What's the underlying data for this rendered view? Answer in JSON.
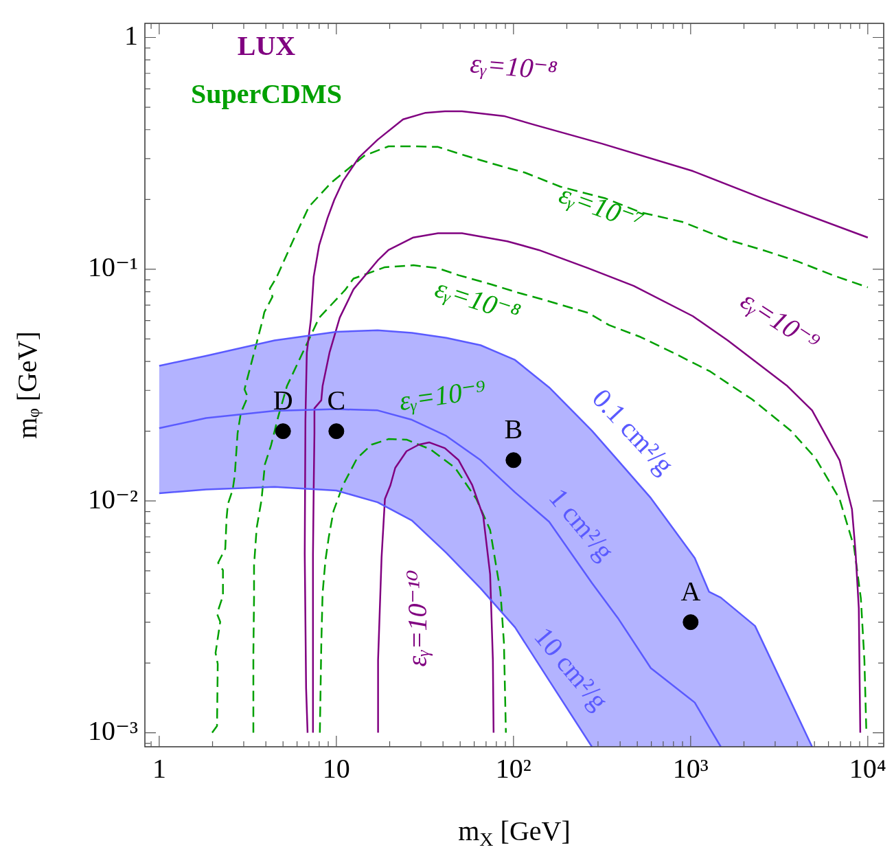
{
  "chart_data": {
    "type": "line",
    "log": "xy",
    "xlabel": "m$_{X}$ [GeV]",
    "ylabel": "mᵩ [GeV]",
    "xlim": [
      0.83,
      12300
    ],
    "ylim": [
      0.00087,
      1.15
    ],
    "xticks": [
      {
        "value": 0.9,
        "label": null
      },
      1,
      {
        "value": 2,
        "label": null
      },
      {
        "value": 3,
        "label": null
      },
      {
        "value": 4,
        "label": null
      },
      {
        "value": 5,
        "label": null
      },
      {
        "value": 6,
        "label": null
      },
      {
        "value": 7,
        "label": null
      },
      {
        "value": 8,
        "label": null
      },
      {
        "value": 9,
        "label": null
      },
      10,
      {
        "value": 20,
        "label": null
      },
      {
        "value": 30,
        "label": null
      },
      {
        "value": 40,
        "label": null
      },
      {
        "value": 50,
        "label": null
      },
      {
        "value": 60,
        "label": null
      },
      {
        "value": 70,
        "label": null
      },
      {
        "value": 80,
        "label": null
      },
      {
        "value": 90,
        "label": null
      },
      {
        "value": 100,
        "label": "10²"
      },
      {
        "value": 200,
        "label": null
      },
      {
        "value": 300,
        "label": null
      },
      {
        "value": 400,
        "label": null
      },
      {
        "value": 500,
        "label": null
      },
      {
        "value": 600,
        "label": null
      },
      {
        "value": 700,
        "label": null
      },
      {
        "value": 800,
        "label": null
      },
      {
        "value": 900,
        "label": null
      },
      {
        "value": 1000,
        "label": "10³"
      },
      {
        "value": 2000,
        "label": null
      },
      {
        "value": 3000,
        "label": null
      },
      {
        "value": 4000,
        "label": null
      },
      {
        "value": 5000,
        "label": null
      },
      {
        "value": 6000,
        "label": null
      },
      {
        "value": 7000,
        "label": null
      },
      {
        "value": 8000,
        "label": null
      },
      {
        "value": 9000,
        "label": null
      },
      {
        "value": 10000,
        "label": "10⁴"
      }
    ],
    "yticks": [
      {
        "value": 0.0009,
        "label": null
      },
      {
        "value": 0.001,
        "label": "10⁻³"
      },
      {
        "value": 0.002,
        "label": null
      },
      {
        "value": 0.003,
        "label": null
      },
      {
        "value": 0.004,
        "label": null
      },
      {
        "value": 0.005,
        "label": null
      },
      {
        "value": 0.006,
        "label": null
      },
      {
        "value": 0.007,
        "label": null
      },
      {
        "value": 0.008,
        "label": null
      },
      {
        "value": 0.009,
        "label": null
      },
      {
        "value": 0.01,
        "label": "10⁻²"
      },
      {
        "value": 0.02,
        "label": null
      },
      {
        "value": 0.03,
        "label": null
      },
      {
        "value": 0.04,
        "label": null
      },
      {
        "value": 0.05,
        "label": null
      },
      {
        "value": 0.06,
        "label": null
      },
      {
        "value": 0.07,
        "label": null
      },
      {
        "value": 0.08,
        "label": null
      },
      {
        "value": 0.09,
        "label": null
      },
      {
        "value": 0.1,
        "label": "10⁻¹"
      },
      {
        "value": 0.2,
        "label": null
      },
      {
        "value": 0.3,
        "label": null
      },
      {
        "value": 0.4,
        "label": null
      },
      {
        "value": 0.5,
        "label": null
      },
      {
        "value": 0.6,
        "label": null
      },
      {
        "value": 0.7,
        "label": null
      },
      {
        "value": 0.8,
        "label": null
      },
      {
        "value": 0.9,
        "label": null
      },
      1
    ],
    "series": [
      {
        "color": "#5a5aff",
        "line_style": "solid",
        "x": [
          1,
          1.84,
          4.48,
          10,
          17.1,
          26.7,
          41.7,
          65.2,
          102,
          159,
          277,
          388,
          596,
          1055,
          1270,
          1480,
          2310,
          4850
        ],
        "values": [
          0.0206,
          0.0228,
          0.0245,
          0.0249,
          0.0246,
          0.0224,
          0.0191,
          0.015,
          0.0109,
          0.00813,
          0.00443,
          0.00313,
          0.0019,
          0.00135,
          0.00106,
          0.00087,
          null,
          null
        ],
        "upper": [
          0.0383,
          0.0423,
          0.0493,
          0.0537,
          0.0545,
          0.0531,
          0.0506,
          0.047,
          0.0406,
          0.0309,
          0.0201,
          0.015,
          0.0103,
          0.00567,
          0.00406,
          0.00383,
          0.00289,
          0.00087
        ],
        "lower": [
          0.0108,
          0.0112,
          0.0115,
          0.0111,
          0.00987,
          0.00824,
          0.00598,
          0.0042,
          0.00285,
          0.00168,
          0.00087,
          0.00087,
          0.00087,
          0.00087,
          0.00087,
          0.00087,
          0.00087,
          0.00087
        ]
      },
      {
        "color": "#5a5aff",
        "line_style": "solid",
        "x": [
          1,
          1.84,
          4.48,
          10,
          17.1,
          26.7,
          41.7,
          65.2,
          102,
          159,
          277,
          388,
          596,
          1055,
          1270,
          1480,
          2310,
          4850
        ],
        "values": [
          0.0383,
          0.0423,
          0.0493,
          0.0537,
          0.0545,
          0.0531,
          0.0506,
          0.047,
          0.0406,
          0.0309,
          0.0201,
          0.015,
          0.0103,
          0.00567,
          0.00406,
          0.00383,
          0.00289,
          0.00087
        ]
      },
      {
        "color": "#5a5aff",
        "line_style": "solid",
        "x": [
          1,
          1.84,
          4.48,
          10,
          17.1,
          26.7,
          41.7,
          65.2,
          102,
          159,
          277
        ],
        "values": [
          0.0108,
          0.0112,
          0.0115,
          0.0111,
          0.00987,
          0.00824,
          0.00598,
          0.0042,
          0.00285,
          0.00168,
          0.00087
        ]
      },
      {
        "color": "#800080",
        "line_style": "solid",
        "x": [
          6.88,
          6.75,
          6.63,
          6.69,
          6.81,
          7.19,
          7.45,
          8.0,
          8.91,
          9.73,
          10.9,
          13.4,
          17.1,
          23.8,
          31.9,
          41.0,
          51.2,
          88.3,
          131,
          316,
          1030,
          2550,
          10000
        ],
        "values": [
          0.001,
          0.00155,
          0.0059,
          0.0224,
          0.0437,
          0.0611,
          0.0929,
          0.127,
          0.166,
          0.199,
          0.24,
          0.303,
          0.362,
          0.443,
          0.473,
          0.48,
          0.48,
          0.458,
          0.42,
          0.348,
          0.265,
          0.202,
          0.137
        ]
      },
      {
        "color": "#800080",
        "line_style": "solid",
        "x": [
          7.38,
          7.38,
          7.45,
          7.52,
          7.52,
          8.22,
          8.36,
          9.15,
          10.45,
          12.5,
          17.1,
          19.7,
          27.2,
          37.5,
          51.2,
          92.3,
          139,
          264,
          477,
          1030,
          1620,
          3520,
          4850,
          6930,
          8140,
          8520,
          8900,
          9070
        ],
        "values": [
          0.001,
          0.0059,
          0.0115,
          0.0196,
          0.0251,
          0.0272,
          0.0313,
          0.0437,
          0.0618,
          0.0819,
          0.109,
          0.121,
          0.137,
          0.143,
          0.143,
          0.132,
          0.121,
          0.101,
          0.0847,
          0.0627,
          0.0493,
          0.0313,
          0.0246,
          0.015,
          0.00923,
          0.0061,
          0.00344,
          0.001
        ]
      },
      {
        "color": "#800080",
        "line_style": "solid",
        "x": [
          17.2,
          17.2,
          18.0,
          18.8,
          20.2,
          21.5,
          24.9,
          29.2,
          33.4,
          41.0,
          49.0,
          58.5,
          67.5,
          73.8,
          76.5,
          77.2
        ],
        "values": [
          0.001,
          0.00206,
          0.00571,
          0.0102,
          0.0117,
          0.0139,
          0.0164,
          0.0175,
          0.0179,
          0.0169,
          0.015,
          0.0117,
          0.00858,
          0.00483,
          0.00206,
          0.001
        ]
      },
      {
        "color": "#00a000",
        "line_style": "dashed",
        "x": [
          1.99,
          2.12,
          2.14,
          2.08,
          2.21,
          2.12,
          2.29,
          2.29,
          2.15,
          2.36,
          2.4,
          2.44,
          2.6,
          2.67,
          2.77,
          2.89,
          3.16,
          3.03,
          3.85,
          3.92,
          4.36,
          4.21,
          4.6,
          5.7,
          7.0,
          9.39,
          14.4,
          19.7,
          27.2,
          37.5,
          53.5,
          84.4,
          116,
          184,
          331,
          521,
          898,
          1620,
          2550,
          4030,
          6340,
          10000
        ],
        "values": [
          0.001,
          0.00107,
          0.00198,
          0.00221,
          0.00301,
          0.00326,
          0.0039,
          0.00503,
          0.00541,
          0.00622,
          0.00841,
          0.00968,
          0.0112,
          0.0129,
          0.0196,
          0.024,
          0.0281,
          0.0303,
          0.0611,
          0.0652,
          0.0761,
          0.0824,
          0.0923,
          0.133,
          0.186,
          0.237,
          0.309,
          0.339,
          0.339,
          0.337,
          0.309,
          0.279,
          0.261,
          0.227,
          0.202,
          0.176,
          0.16,
          0.134,
          0.121,
          0.108,
          0.0942,
          0.0835
        ]
      },
      {
        "color": "#00a000",
        "line_style": "dashed",
        "x": [
          3.4,
          3.4,
          3.4,
          3.43,
          3.43,
          3.55,
          3.78,
          3.95,
          4.28,
          4.69,
          5.26,
          8.0,
          11.2,
          12.5,
          18.8,
          27.2,
          37.5,
          49.0,
          73.8,
          106,
          146,
          264,
          346,
          521,
          822,
          1290,
          1620,
          2230,
          3680,
          5070,
          6930,
          8360,
          9140,
          9570,
          9820
        ],
        "values": [
          0.001,
          0.00136,
          0.00217,
          0.0038,
          0.00527,
          0.00766,
          0.0101,
          0.0144,
          0.0174,
          0.023,
          0.0313,
          0.0618,
          0.0813,
          0.0911,
          0.102,
          0.104,
          0.101,
          0.0942,
          0.0863,
          0.0792,
          0.0741,
          0.0648,
          0.0574,
          0.051,
          0.0431,
          0.0362,
          0.0322,
          0.0274,
          0.0201,
          0.0153,
          0.0102,
          0.00635,
          0.0038,
          0.00206,
          0.001
        ]
      },
      {
        "color": "#00a000",
        "line_style": "dashed",
        "x": [
          8.07,
          8.22,
          8.36,
          8.67,
          9.06,
          9.64,
          10.9,
          13.1,
          15.8,
          19.7,
          24.9,
          34.0,
          46.8,
          61.7,
          73.8,
          84.4,
          88.3,
          90.6
        ],
        "values": [
          0.001,
          0.00238,
          0.00398,
          0.00552,
          0.00698,
          0.00906,
          0.0117,
          0.0153,
          0.0175,
          0.0185,
          0.0184,
          0.0167,
          0.0139,
          0.0102,
          0.0075,
          0.00406,
          0.00245,
          0.001
        ]
      },
      {
        "type": "scatter",
        "color": "#000000",
        "marker": "circle",
        "x": [
          5,
          10,
          100,
          1000
        ],
        "values": [
          0.02,
          0.02,
          0.015,
          0.003
        ]
      }
    ],
    "annotations": [
      "LUX",
      "SuperCDMS",
      "εᵧ=10⁻⁸",
      "εᵧ=10⁻⁷",
      "εᵧ=10⁻⁸",
      "εᵧ=10⁻⁹",
      "εᵧ=10⁻⁹",
      "εᵧ=10⁻¹⁰",
      "0.1 cm²/g",
      "1 cm²/g",
      "10 cm²/g",
      {
        "text": "D",
        "x": 5,
        "y": 0.02
      },
      {
        "text": "C",
        "x": 10,
        "y": 0.02
      },
      {
        "text": "B",
        "x": 100,
        "y": 0.015
      },
      {
        "text": "A",
        "x": 1000,
        "y": 0.003
      }
    ]
  }
}
